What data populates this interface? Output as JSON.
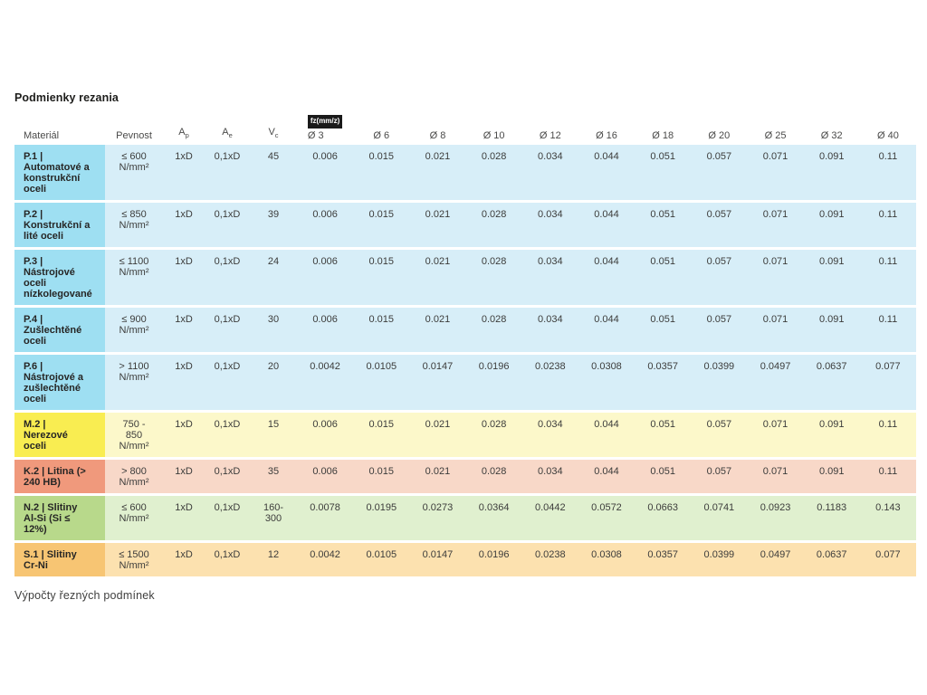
{
  "page": {
    "title": "Podmienky rezania",
    "footer": "Výpočty řezných podmínek"
  },
  "table": {
    "headers": {
      "material": "Materiál",
      "pevnost": "Pevnost",
      "ap": {
        "base": "A",
        "sub": "p"
      },
      "ae": {
        "base": "A",
        "sub": "e"
      },
      "vc": {
        "base": "V",
        "sub": "c"
      },
      "fz_unit_badge": "fz(mm/z)",
      "diameters": [
        "Ø 3",
        "Ø 6",
        "Ø 8",
        "Ø 10",
        "Ø 12",
        "Ø 16",
        "Ø 18",
        "Ø 20",
        "Ø 25",
        "Ø 32",
        "Ø 40"
      ]
    },
    "rows": [
      {
        "material": "P.1 | Automatové a konstrukční oceli",
        "pevnost": "≤ 600 N/mm²",
        "ap": "1xD",
        "ae": "0,1xD",
        "vc": "45",
        "values": [
          "0.006",
          "0.015",
          "0.021",
          "0.028",
          "0.034",
          "0.044",
          "0.051",
          "0.057",
          "0.071",
          "0.091",
          "0.11"
        ],
        "colors": {
          "label": "#9edff2",
          "data": "#d7eef8"
        }
      },
      {
        "material": "P.2 | Konstrukční a lité oceli",
        "pevnost": "≤ 850 N/mm²",
        "ap": "1xD",
        "ae": "0,1xD",
        "vc": "39",
        "values": [
          "0.006",
          "0.015",
          "0.021",
          "0.028",
          "0.034",
          "0.044",
          "0.051",
          "0.057",
          "0.071",
          "0.091",
          "0.11"
        ],
        "colors": {
          "label": "#9edff2",
          "data": "#d7eef8"
        }
      },
      {
        "material": "P.3 | Nástrojové oceli nízkolegované",
        "pevnost": "≤ 1100 N/mm²",
        "ap": "1xD",
        "ae": "0,1xD",
        "vc": "24",
        "values": [
          "0.006",
          "0.015",
          "0.021",
          "0.028",
          "0.034",
          "0.044",
          "0.051",
          "0.057",
          "0.071",
          "0.091",
          "0.11"
        ],
        "colors": {
          "label": "#9edff2",
          "data": "#d7eef8"
        }
      },
      {
        "material": "P.4 | Zušlechtěné oceli",
        "pevnost": "≤ 900 N/mm²",
        "ap": "1xD",
        "ae": "0,1xD",
        "vc": "30",
        "values": [
          "0.006",
          "0.015",
          "0.021",
          "0.028",
          "0.034",
          "0.044",
          "0.051",
          "0.057",
          "0.071",
          "0.091",
          "0.11"
        ],
        "colors": {
          "label": "#9edff2",
          "data": "#d7eef8"
        }
      },
      {
        "material": "P.6 | Nástrojové a zušlechtěné oceli",
        "pevnost": "> 1100 N/mm²",
        "ap": "1xD",
        "ae": "0,1xD",
        "vc": "20",
        "values": [
          "0.0042",
          "0.0105",
          "0.0147",
          "0.0196",
          "0.0238",
          "0.0308",
          "0.0357",
          "0.0399",
          "0.0497",
          "0.0637",
          "0.077"
        ],
        "colors": {
          "label": "#9edff2",
          "data": "#d7eef8"
        }
      },
      {
        "material": "M.2 | Nerezové oceli",
        "pevnost": "750 - 850 N/mm²",
        "ap": "1xD",
        "ae": "0,1xD",
        "vc": "15",
        "values": [
          "0.006",
          "0.015",
          "0.021",
          "0.028",
          "0.034",
          "0.044",
          "0.051",
          "0.057",
          "0.071",
          "0.091",
          "0.11"
        ],
        "colors": {
          "label": "#f9ed51",
          "data": "#fcf8ca"
        }
      },
      {
        "material": "K.2 | Litina (> 240 HB)",
        "pevnost": "> 800 N/mm²",
        "ap": "1xD",
        "ae": "0,1xD",
        "vc": "35",
        "values": [
          "0.006",
          "0.015",
          "0.021",
          "0.028",
          "0.034",
          "0.044",
          "0.051",
          "0.057",
          "0.071",
          "0.091",
          "0.11"
        ],
        "colors": {
          "label": "#f0997c",
          "data": "#f8d8c8"
        }
      },
      {
        "material": "N.2 | Slitiny Al-Si (Si ≤ 12%)",
        "pevnost": "≤ 600 N/mm²",
        "ap": "1xD",
        "ae": "0,1xD",
        "vc": "160-300",
        "values": [
          "0.0078",
          "0.0195",
          "0.0273",
          "0.0364",
          "0.0442",
          "0.0572",
          "0.0663",
          "0.0741",
          "0.0923",
          "0.1183",
          "0.143"
        ],
        "colors": {
          "label": "#b8d98b",
          "data": "#e0f0cf"
        }
      },
      {
        "material": "S.1 | Slitiny Cr-Ni",
        "pevnost": "≤ 1500 N/mm²",
        "ap": "1xD",
        "ae": "0,1xD",
        "vc": "12",
        "values": [
          "0.0042",
          "0.0105",
          "0.0147",
          "0.0196",
          "0.0238",
          "0.0308",
          "0.0357",
          "0.0399",
          "0.0497",
          "0.0637",
          "0.077"
        ],
        "colors": {
          "label": "#f7c573",
          "data": "#fce1af"
        }
      }
    ]
  }
}
